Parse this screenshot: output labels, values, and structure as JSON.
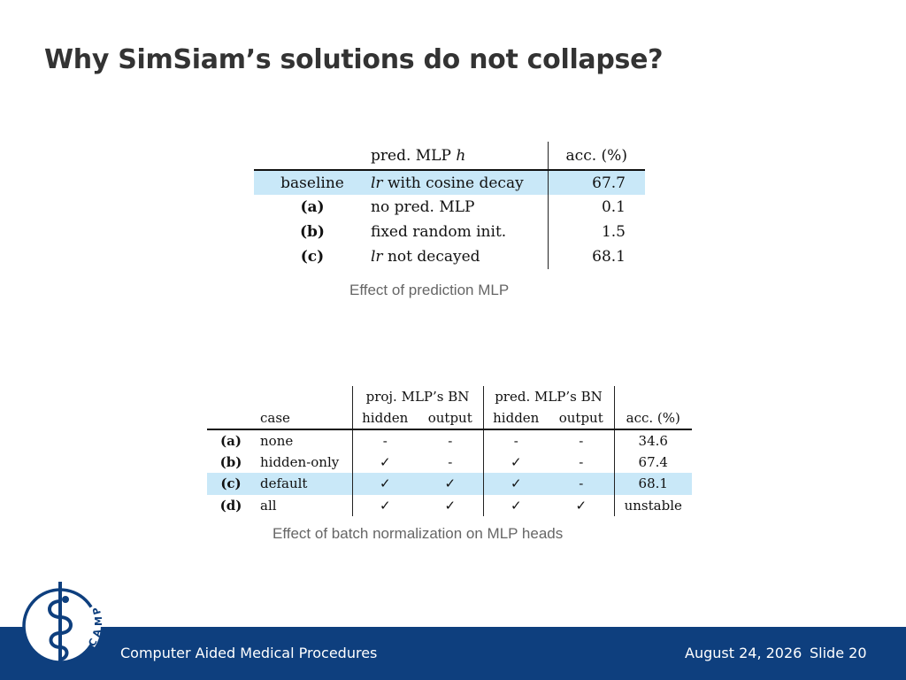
{
  "slide": {
    "title": "Why SimSiam’s solutions do not collapse?"
  },
  "table1": {
    "header": {
      "col2_prefix": "pred. MLP ",
      "col2_var": "h",
      "col3": "acc. (%)"
    },
    "rows": [
      {
        "label": "baseline",
        "desc_var": "lr",
        "desc_rest": " with cosine decay",
        "acc": "67.7",
        "highlight": true
      },
      {
        "label": "(a)",
        "desc": "no pred. MLP",
        "acc": "0.1"
      },
      {
        "label": "(b)",
        "desc": "fixed random init.",
        "acc": "1.5"
      },
      {
        "label": "(c)",
        "desc_var": "lr",
        "desc_rest": " not decayed",
        "acc": "68.1"
      }
    ],
    "caption": "Effect of prediction MLP"
  },
  "table2": {
    "header": {
      "group1": "proj. MLP’s BN",
      "group2": "pred. MLP’s BN",
      "case": "case",
      "hidden1": "hidden",
      "output1": "output",
      "hidden2": "hidden",
      "output2": "output",
      "acc": "acc. (%)"
    },
    "rows": [
      {
        "id": "(a)",
        "case": "none",
        "ph": "-",
        "po": "-",
        "qh": "-",
        "qo": "-",
        "acc": "34.6"
      },
      {
        "id": "(b)",
        "case": "hidden-only",
        "ph": "✓",
        "po": "-",
        "qh": "✓",
        "qo": "-",
        "acc": "67.4"
      },
      {
        "id": "(c)",
        "case": "default",
        "ph": "✓",
        "po": "✓",
        "qh": "✓",
        "qo": "-",
        "acc": "68.1",
        "highlight": true
      },
      {
        "id": "(d)",
        "case": "all",
        "ph": "✓",
        "po": "✓",
        "qh": "✓",
        "qo": "✓",
        "acc": "unstable"
      }
    ],
    "caption": "Effect of batch normalization on MLP heads"
  },
  "footer": {
    "institution": "Computer Aided Medical Procedures",
    "date": "August 24, 2026",
    "slide_number": "Slide 20",
    "logo_text": "CAMP"
  },
  "colors": {
    "footer_bar": "#0e3f7e",
    "highlight": "#c9e8f8",
    "logo": "#0e3f7e"
  }
}
